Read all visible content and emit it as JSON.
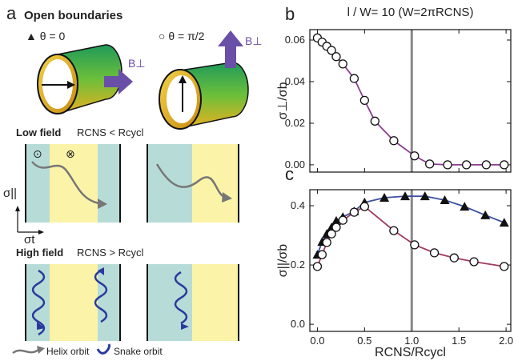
{
  "panel_a": {
    "letter": "a",
    "title": "Open boundaries",
    "case1": "▲ θ = 0",
    "case2": "○ θ = π/2",
    "field1": "B⊥",
    "field2": "B⊥",
    "low_title": "Low field",
    "low_cond": "RCNS < Rcycl",
    "high_title": "High field",
    "high_cond": "RCNS > Rcycl",
    "axis_y": "σ||",
    "axis_x": "σt",
    "out_of_page": "⊙",
    "into_page": "⊗",
    "legend_helix": "Helix orbit",
    "legend_snake": "Snake orbit"
  },
  "chart_data": [
    {
      "type": "line",
      "letter": "b",
      "title": "l / W= 10 (W=2πRCNS)",
      "ylabel": "σ⊥/σb",
      "xlim": [
        -0.08,
        2.05
      ],
      "ylim": [
        -0.0035,
        0.065
      ],
      "xticks": [
        0,
        0.5,
        1,
        1.5,
        2
      ],
      "xtick_labels": false,
      "yticks": [
        {
          "value": 0,
          "label": "0.00"
        },
        {
          "value": 0.02,
          "label": "0.02"
        },
        {
          "value": 0.04,
          "label": "0.04"
        },
        {
          "value": 0.06,
          "label": "0.06"
        }
      ],
      "vline": 1,
      "series": [
        {
          "color": "#8a3f8f",
          "marker": "circle",
          "x": [
            0,
            0.05,
            0.1,
            0.15,
            0.2,
            0.27,
            0.39,
            0.5,
            0.61,
            0.81,
            1.03,
            1.19,
            1.38,
            1.58,
            1.79,
            1.98
          ],
          "values": [
            0.061,
            0.059,
            0.057,
            0.055,
            0.052,
            0.0485,
            0.0415,
            0.031,
            0.021,
            0.0116,
            0.0043,
            0.0004,
            0,
            0,
            0,
            0
          ]
        }
      ]
    },
    {
      "type": "line",
      "letter": "c",
      "ylabel": "σ||/σb",
      "xlabel": "RCNS/Rcycl",
      "xlim": [
        -0.08,
        2.05
      ],
      "ylim": [
        -0.024,
        0.454
      ],
      "xticks": [
        {
          "value": 0,
          "label": "0.0"
        },
        {
          "value": 0.5,
          "label": "0.5"
        },
        {
          "value": 1,
          "label": "1.0"
        },
        {
          "value": 1.5,
          "label": "1.5"
        },
        {
          "value": 2,
          "label": "2.0"
        }
      ],
      "xtick_labels": true,
      "yticks": [
        {
          "value": 0,
          "label": "0.0"
        },
        {
          "value": 0.2,
          "label": "0.2"
        },
        {
          "value": 0.4,
          "label": "0.4"
        }
      ],
      "vline": 1,
      "series": [
        {
          "color": "#3b4fa0",
          "marker": "triangle",
          "x": [
            0,
            0.05,
            0.1,
            0.15,
            0.2,
            0.27,
            0.39,
            0.5,
            0.71,
            0.93,
            1.14,
            1.35,
            1.56,
            1.78,
            1.98
          ],
          "values": [
            0.235,
            0.278,
            0.305,
            0.327,
            0.349,
            0.362,
            0.381,
            0.411,
            0.427,
            0.432,
            0.432,
            0.419,
            0.397,
            0.368,
            0.343
          ]
        },
        {
          "color": "#a03a5a",
          "marker": "circle",
          "x": [
            0,
            0.05,
            0.1,
            0.15,
            0.2,
            0.27,
            0.39,
            0.5,
            0.81,
            1.03,
            1.24,
            1.45,
            1.66,
            1.98
          ],
          "values": [
            0.195,
            0.235,
            0.276,
            0.305,
            0.327,
            0.351,
            0.378,
            0.397,
            0.316,
            0.268,
            0.241,
            0.224,
            0.211,
            0.195
          ]
        }
      ]
    }
  ]
}
